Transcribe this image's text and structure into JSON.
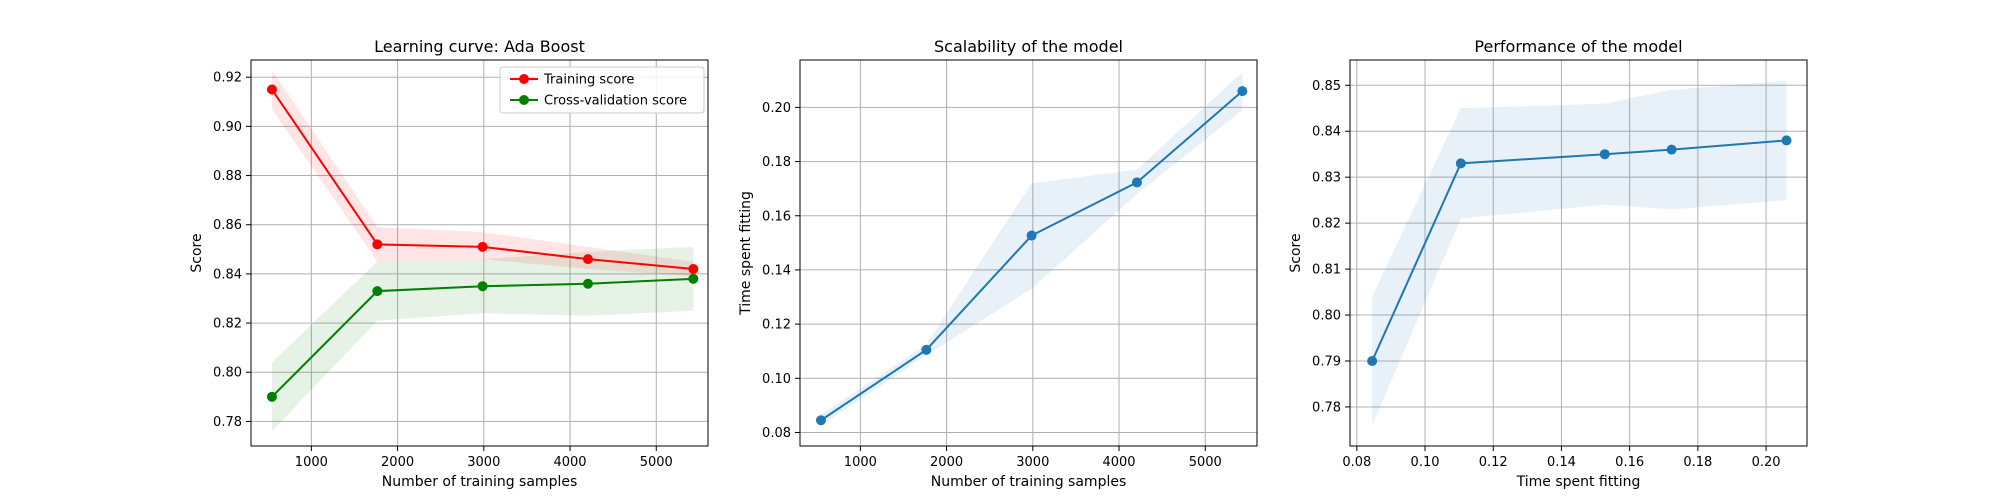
{
  "chart_data": [
    {
      "type": "line",
      "title": "Learning curve: Ada Boost",
      "xlabel": "Number of training samples",
      "ylabel": "Score",
      "xlim": [
        300,
        5600
      ],
      "ylim": [
        0.77,
        0.927
      ],
      "xticks": [
        1000,
        2000,
        3000,
        4000,
        5000
      ],
      "yticks": [
        0.78,
        0.8,
        0.82,
        0.84,
        0.86,
        0.88,
        0.9,
        0.92
      ],
      "grid": true,
      "legend_position": "top-right",
      "x": [
        543,
        1765,
        2986,
        4208,
        5430
      ],
      "series": [
        {
          "name": "Training score",
          "color": "#ff0000",
          "values": [
            0.915,
            0.852,
            0.851,
            0.846,
            0.842
          ],
          "band_lower": [
            0.907,
            0.845,
            0.846,
            0.842,
            0.839
          ],
          "band_upper": [
            0.923,
            0.859,
            0.857,
            0.851,
            0.845
          ]
        },
        {
          "name": "Cross-validation score",
          "color": "#008000",
          "values": [
            0.79,
            0.833,
            0.835,
            0.836,
            0.838
          ],
          "band_lower": [
            0.776,
            0.821,
            0.824,
            0.823,
            0.825
          ],
          "band_upper": [
            0.804,
            0.845,
            0.846,
            0.849,
            0.851
          ]
        }
      ]
    },
    {
      "type": "line",
      "title": "Scalability of the model",
      "xlabel": "Number of training samples",
      "ylabel": "Time spent fitting",
      "xlim": [
        300,
        5600
      ],
      "ylim": [
        0.075,
        0.2175
      ],
      "xticks": [
        1000,
        2000,
        3000,
        4000,
        5000
      ],
      "yticks": [
        0.08,
        0.1,
        0.12,
        0.14,
        0.16,
        0.18,
        0.2
      ],
      "grid": true,
      "x": [
        543,
        1765,
        2986,
        4208,
        5430
      ],
      "series": [
        {
          "color": "#1f77b4",
          "values": [
            0.0845,
            0.1105,
            0.1527,
            0.1723,
            0.206
          ],
          "band_lower": [
            0.0825,
            0.1085,
            0.133,
            0.168,
            0.199
          ],
          "band_upper": [
            0.0865,
            0.1125,
            0.172,
            0.177,
            0.213
          ]
        }
      ]
    },
    {
      "type": "line",
      "title": "Performance of the model",
      "xlabel": "Time spent fitting",
      "ylabel": "Score",
      "xlim": [
        0.078,
        0.212
      ],
      "ylim": [
        0.7715,
        0.8555
      ],
      "xticks": [
        0.08,
        0.1,
        0.12,
        0.14,
        0.16,
        0.18,
        0.2
      ],
      "yticks": [
        0.78,
        0.79,
        0.8,
        0.81,
        0.82,
        0.83,
        0.84,
        0.85
      ],
      "grid": true,
      "x": [
        0.0845,
        0.1105,
        0.1527,
        0.1723,
        0.206
      ],
      "series": [
        {
          "color": "#1f77b4",
          "values": [
            0.79,
            0.833,
            0.835,
            0.836,
            0.838
          ],
          "band_lower": [
            0.776,
            0.821,
            0.824,
            0.823,
            0.825
          ],
          "band_upper": [
            0.804,
            0.845,
            0.846,
            0.849,
            0.851
          ]
        }
      ]
    }
  ]
}
